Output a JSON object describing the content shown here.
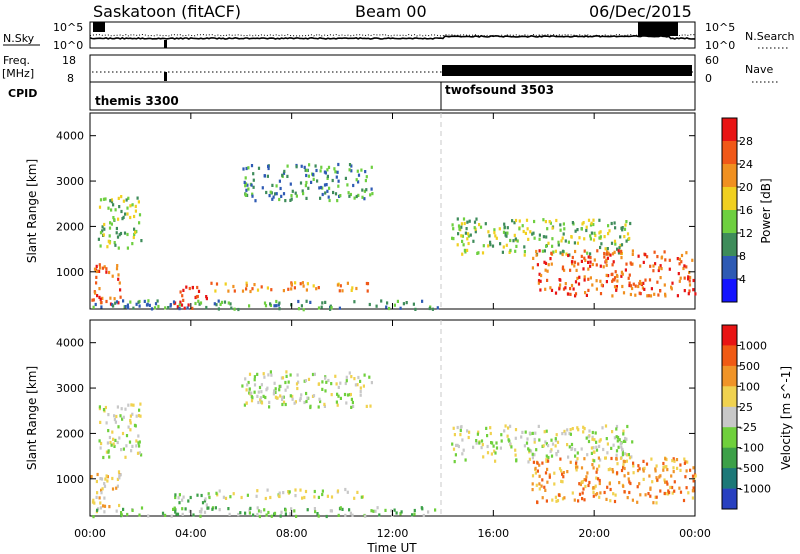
{
  "header": {
    "station": "Saskatoon (fitACF)",
    "beam": "Beam 00",
    "date": "06/Dec/2015"
  },
  "sky_panel": {
    "left_label": "N.Sky",
    "left_ticks": [
      "10^5",
      "10^0"
    ],
    "right_label": "N.Search",
    "right_ticks": [
      "10^5",
      "10^0"
    ],
    "right_legend_line": "dotted"
  },
  "freq_panel": {
    "left_label": "Freq.",
    "left_unit": "[MHz]",
    "left_ticks": [
      "18",
      "8"
    ],
    "right_label": "Nave",
    "right_ticks": [
      "60",
      "0"
    ],
    "right_legend_line": "dotted"
  },
  "cpid_panel": {
    "label": "CPID",
    "programs": [
      {
        "name": "themis 3300",
        "start_hour": 0
      },
      {
        "name": "twofsound 3503",
        "start_hour": 14.05
      }
    ]
  },
  "chart_data": [
    {
      "type": "heatmap",
      "name": "Power",
      "ylabel": "Slant Range [km]",
      "xlim": [
        0,
        24
      ],
      "ylim": [
        180,
        4500
      ],
      "x_ticks": [
        "00:00",
        "04:00",
        "08:00",
        "12:00",
        "16:00",
        "20:00",
        "00:00"
      ],
      "y_ticks": [
        1000,
        2000,
        3000,
        4000
      ],
      "colorbar": {
        "label": "Power [dB]",
        "ticks": [
          "4",
          "8",
          "12",
          "16",
          "20",
          "24",
          "28"
        ],
        "colors": [
          "#1414ff",
          "#2e5ab4",
          "#3e8c5a",
          "#6ecf40",
          "#f0d020",
          "#f09020",
          "#f05818",
          "#e81414"
        ]
      },
      "regions": [
        {
          "t0": 0.0,
          "t1": 1.2,
          "r0": 300,
          "r1": 1200,
          "level": 6
        },
        {
          "t0": 0.3,
          "t1": 2.0,
          "r0": 1500,
          "r1": 2700,
          "level": 3
        },
        {
          "t0": 3.3,
          "t1": 4.6,
          "r0": 200,
          "r1": 700,
          "level": 7
        },
        {
          "t0": 4.6,
          "t1": 11.0,
          "r0": 600,
          "r1": 800,
          "level": 5
        },
        {
          "t0": 0.0,
          "t1": 13.8,
          "r0": 200,
          "r1": 400,
          "level": 2
        },
        {
          "t0": 6.0,
          "t1": 11.2,
          "r0": 2600,
          "r1": 3400,
          "level": 2
        },
        {
          "t0": 14.3,
          "t1": 21.5,
          "r0": 1400,
          "r1": 2200,
          "level": 3
        },
        {
          "t0": 17.5,
          "t1": 24.0,
          "r0": 500,
          "r1": 1500,
          "level": 6
        }
      ]
    },
    {
      "type": "heatmap",
      "name": "Velocity",
      "xlabel": "Time UT",
      "ylabel": "Slant Range [km]",
      "xlim": [
        0,
        24
      ],
      "ylim": [
        180,
        4500
      ],
      "x_ticks": [
        "00:00",
        "04:00",
        "08:00",
        "12:00",
        "16:00",
        "20:00",
        "00:00"
      ],
      "y_ticks": [
        1000,
        2000,
        3000,
        4000
      ],
      "colorbar": {
        "label": "Velocity [m s^-1]",
        "ticks": [
          "1000",
          "500",
          "100",
          "25",
          "-25",
          "-100",
          "-500",
          "-1000"
        ],
        "colors": [
          "#2840c0",
          "#1c7878",
          "#3ca048",
          "#6fd03c",
          "#c8c8c8",
          "#f0d250",
          "#f09428",
          "#f05a14",
          "#e81414"
        ]
      },
      "regions": [
        {
          "t0": 0.0,
          "t1": 1.2,
          "r0": 300,
          "r1": 1200,
          "level": 5
        },
        {
          "t0": 0.3,
          "t1": 2.0,
          "r0": 1500,
          "r1": 2700,
          "level": 4
        },
        {
          "t0": 3.3,
          "t1": 4.6,
          "r0": 200,
          "r1": 700,
          "level": 3
        },
        {
          "t0": 4.6,
          "t1": 11.0,
          "r0": 600,
          "r1": 800,
          "level": 4
        },
        {
          "t0": 0.0,
          "t1": 13.8,
          "r0": 200,
          "r1": 400,
          "level": 3
        },
        {
          "t0": 6.0,
          "t1": 11.2,
          "r0": 2600,
          "r1": 3400,
          "level": 4
        },
        {
          "t0": 14.3,
          "t1": 21.5,
          "r0": 1400,
          "r1": 2200,
          "level": 4
        },
        {
          "t0": 17.5,
          "t1": 24.0,
          "r0": 500,
          "r1": 1500,
          "level": 6
        }
      ]
    }
  ]
}
